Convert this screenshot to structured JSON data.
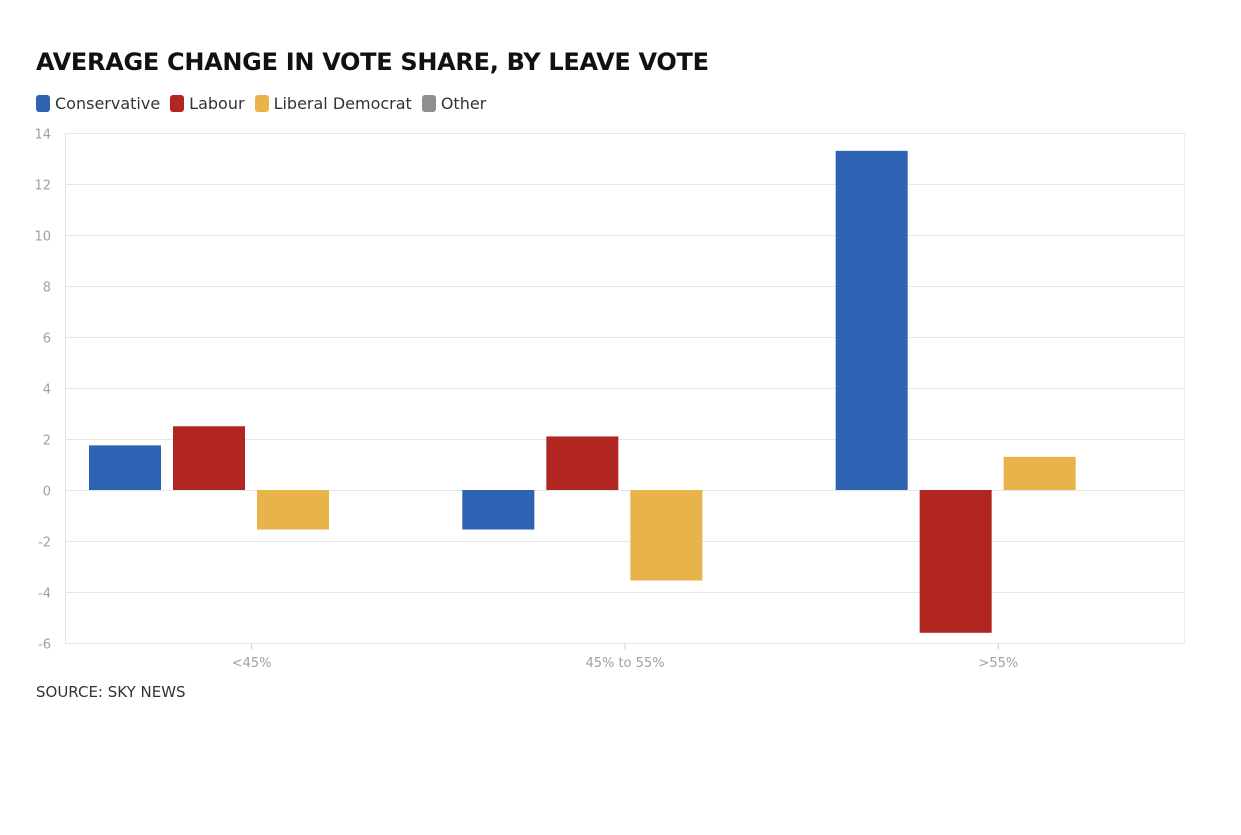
{
  "chart_data": {
    "type": "bar",
    "title": "AVERAGE CHANGE IN VOTE SHARE, BY LEAVE VOTE",
    "xlabel": "",
    "ylabel": "",
    "categories": [
      "<45%",
      "45% to 55%",
      ">55%"
    ],
    "series": [
      {
        "name": "Conservative",
        "color": "#2e62b2",
        "values": [
          1.75,
          -1.55,
          13.3
        ]
      },
      {
        "name": "Labour",
        "color": "#b22622",
        "values": [
          2.5,
          2.1,
          -5.6
        ]
      },
      {
        "name": "Liberal Democrat",
        "color": "#e9b34b",
        "values": [
          -1.55,
          -3.55,
          1.3
        ]
      },
      {
        "name": "Other",
        "color": "#8f8f8f",
        "values": [
          null,
          null,
          null
        ]
      }
    ],
    "ylim": [
      -6,
      14
    ],
    "yticks": [
      14,
      12,
      10,
      8,
      6,
      4,
      2,
      0,
      -2,
      -4,
      -6
    ],
    "grid": true,
    "legend_position": "top-left"
  },
  "source": "SOURCE: SKY NEWS"
}
